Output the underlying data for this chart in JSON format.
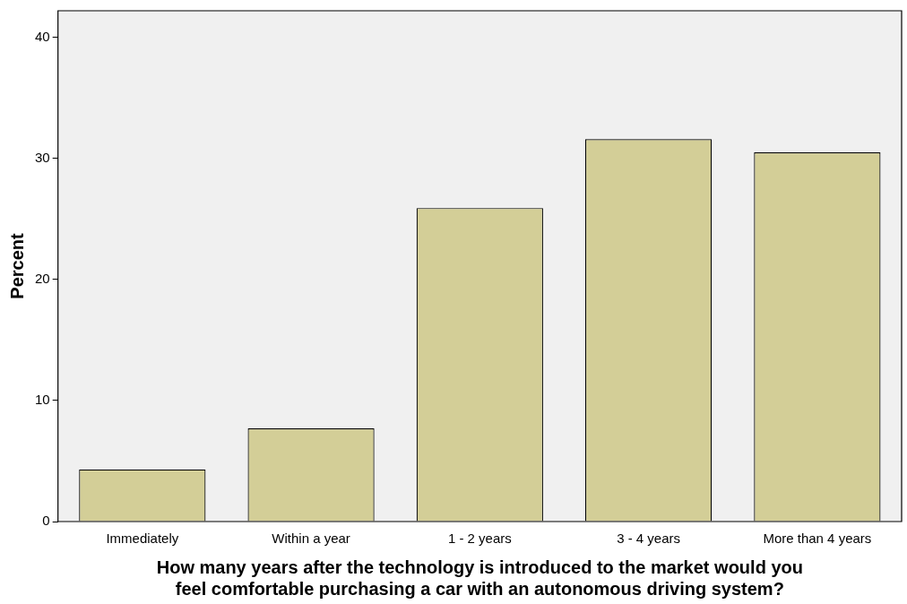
{
  "chart_data": {
    "type": "bar",
    "categories": [
      "Immediately",
      "Within a year",
      "1 - 2 years",
      "3 - 4 years",
      "More than 4 years"
    ],
    "values": [
      4.3,
      7.7,
      25.9,
      31.6,
      30.5
    ],
    "color": "#d3ce97",
    "ylim": [
      0,
      42.2
    ],
    "yticks": [
      0,
      10,
      20,
      30,
      40
    ],
    "xlabel": "How many years after the technology is introduced to the market would you\nfeel comfortable purchasing a car with an autonomous driving system?",
    "ylabel": "Percent"
  }
}
